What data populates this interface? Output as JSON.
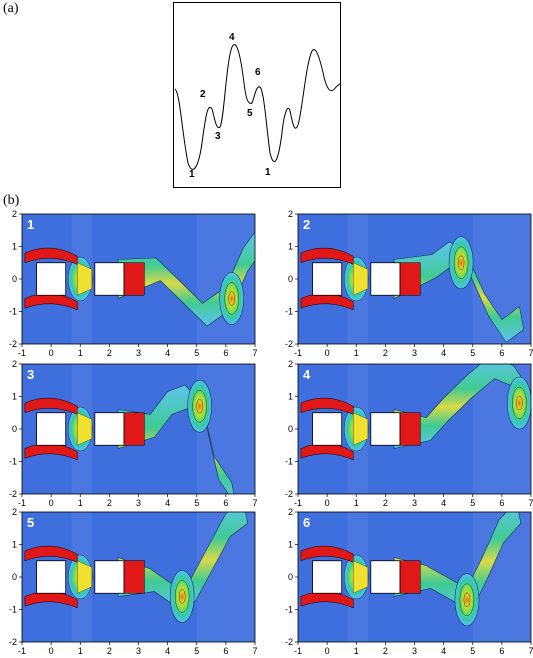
{
  "figure": {
    "label_a": "(a)",
    "label_b": "(b)"
  },
  "waveform": {
    "point_labels": [
      "1",
      "2",
      "3",
      "4",
      "5",
      "6",
      "1"
    ]
  },
  "snapshots": {
    "x_ticks": [
      "-1",
      "0",
      "1",
      "2",
      "3",
      "4",
      "5",
      "6",
      "7"
    ],
    "y_ticks": [
      "2",
      "1",
      "0",
      "-1",
      "-2"
    ],
    "x_range": [
      -1,
      7
    ],
    "y_range": [
      -2,
      2
    ],
    "panels": [
      {
        "label": "1"
      },
      {
        "label": "2"
      },
      {
        "label": "3"
      },
      {
        "label": "4"
      },
      {
        "label": "5"
      },
      {
        "label": "6"
      }
    ]
  },
  "colors": {
    "background_field": "#3f6fdc",
    "body_fill": "#ffffff",
    "shear_layer": "#e01818"
  }
}
